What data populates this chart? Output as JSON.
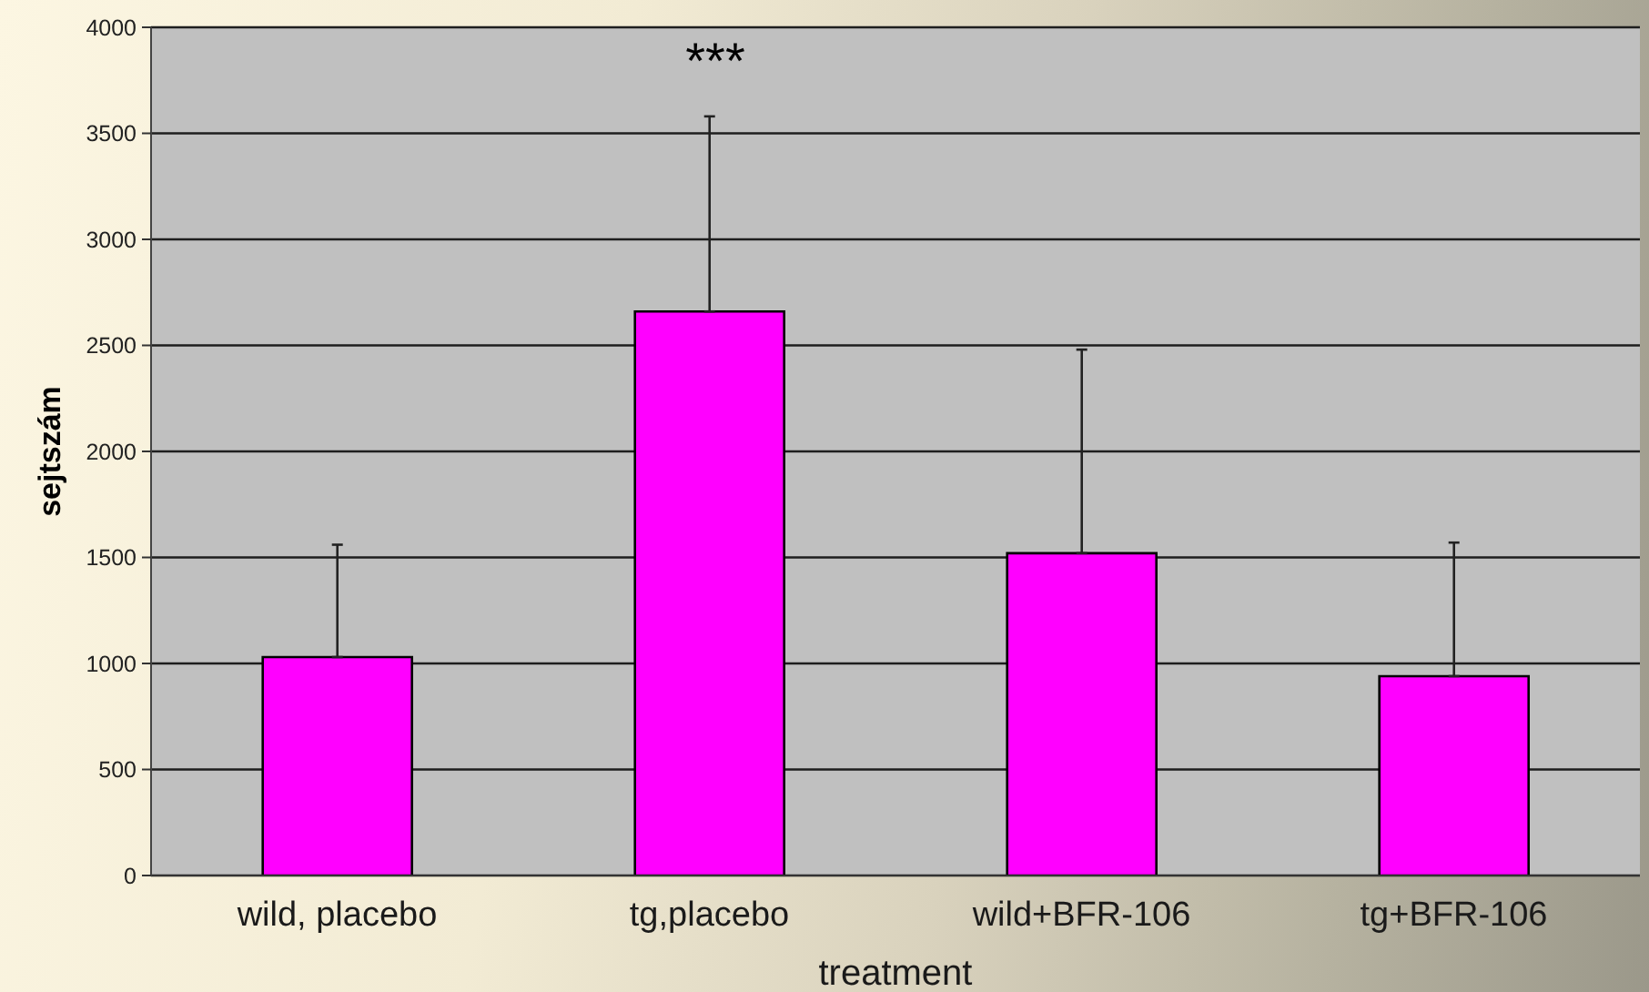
{
  "chart_data": {
    "type": "bar",
    "xlabel": "treatment",
    "ylabel": "sejtszám",
    "categories": [
      "wild, placebo",
      "tg,placebo",
      "wild+BFR-106",
      "tg+BFR-106"
    ],
    "values": [
      1030,
      2660,
      1520,
      940
    ],
    "errors": [
      [
        1030,
        1560
      ],
      [
        2660,
        3580
      ],
      [
        1520,
        2480
      ],
      [
        940,
        1570
      ]
    ],
    "color": "#ff00ff",
    "ylim": [
      0,
      4000
    ],
    "yticks": [
      0,
      500,
      1000,
      1500,
      2000,
      2500,
      3000,
      3500,
      4000
    ],
    "grid": "y",
    "annotations": [
      "***"
    ]
  }
}
